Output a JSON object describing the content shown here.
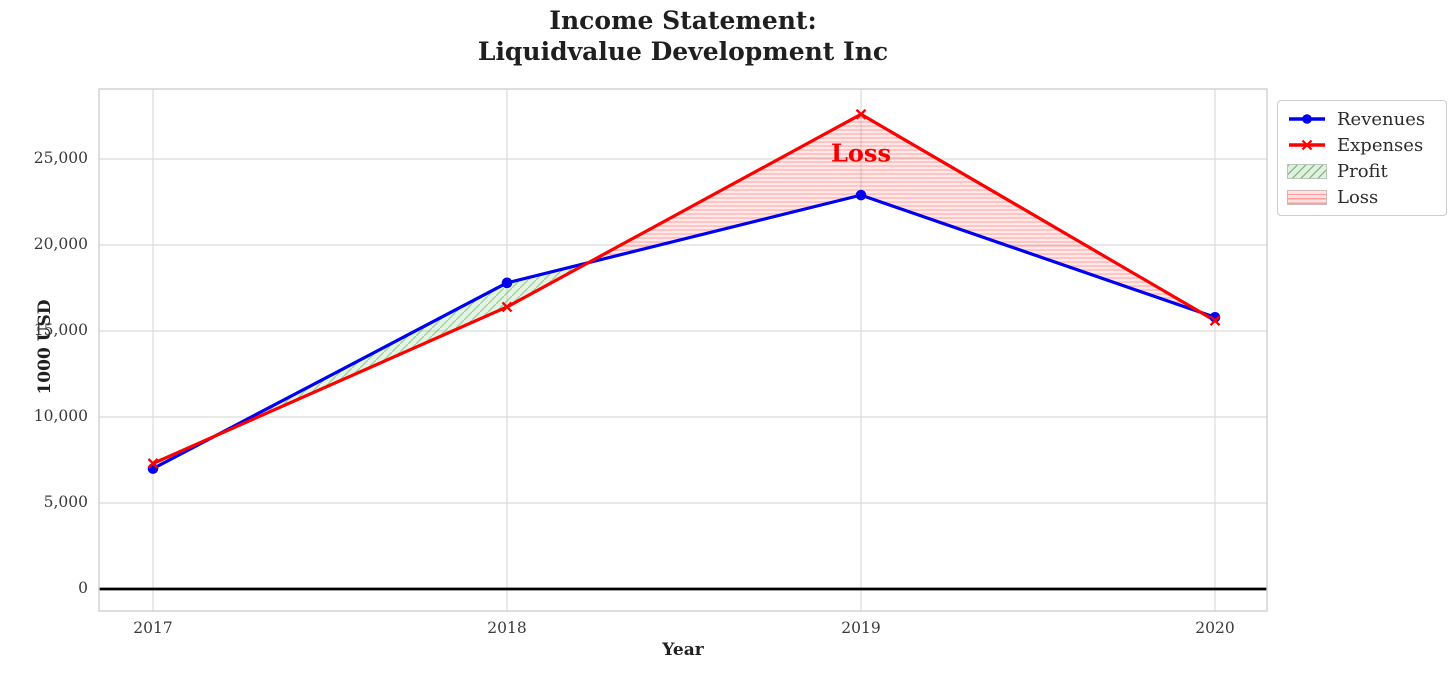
{
  "chart_data": {
    "type": "line",
    "title_lines": [
      "Income Statement:",
      "Liquidvalue Development Inc"
    ],
    "xlabel": "Year",
    "ylabel": "1000 USD",
    "x": [
      2017,
      2018,
      2019,
      2020
    ],
    "x_tick_labels": [
      "2017",
      "2018",
      "2019",
      "2020"
    ],
    "series": [
      {
        "name": "Revenues",
        "marker": "circle",
        "color": "#0000f0",
        "values": [
          7000,
          17800,
          22900,
          15800
        ]
      },
      {
        "name": "Expenses",
        "marker": "x",
        "color": "#ff0000",
        "values": [
          7300,
          16400,
          27600,
          15600
        ]
      }
    ],
    "fills": [
      {
        "name": "Profit",
        "condition": "revenues_above_expenses",
        "color": "#2ca02c",
        "hatch": "diagonal"
      },
      {
        "name": "Loss",
        "condition": "expenses_above_revenues",
        "color": "#ff2020",
        "hatch": "horizontal"
      }
    ],
    "legend": [
      {
        "label": "Revenues"
      },
      {
        "label": "Expenses"
      },
      {
        "label": "Profit"
      },
      {
        "label": "Loss"
      }
    ],
    "legend_position": "outside-top-right",
    "grid": true,
    "zero_line": true,
    "ylim": [
      -1278,
      29070
    ],
    "yticks": {
      "values": [
        0,
        5000,
        10000,
        15000,
        20000,
        25000
      ],
      "labels": [
        "0",
        "5,000",
        "10,000",
        "15,000",
        "20,000",
        "25,000"
      ]
    },
    "annotation": {
      "label": "Loss",
      "x_year": 2019,
      "y_value": 25350
    }
  }
}
